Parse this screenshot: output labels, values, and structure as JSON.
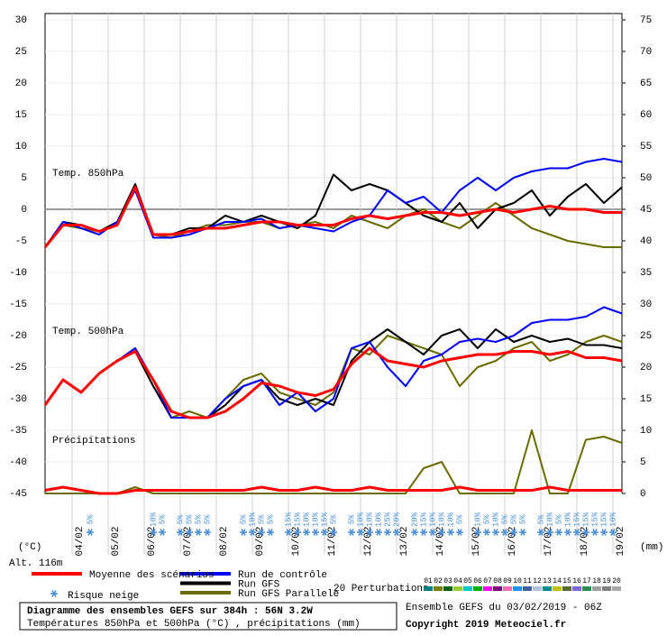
{
  "chart_data": {
    "type": "line",
    "title": "Diagramme des ensembles GEFS sur 384h : 56N 3.2W",
    "subtitle": "Températures 850hPa et 500hPa (°C) , précipitations (mm)",
    "run_info": "Ensemble GEFS du 03/02/2019 - 06Z",
    "copyright": "Copyright 2019 Meteociel.fr",
    "y_unit": "(°C)",
    "y2_unit": "(mm)",
    "altitude": "Alt. 116m",
    "annotations": [
      "Temp. 850hPa",
      "Temp. 500hPa",
      "Précipitations"
    ],
    "xlim": [
      0,
      16
    ],
    "xticks": [
      {
        "value": 0.75,
        "label": "04/02"
      },
      {
        "value": 1.75,
        "label": "05/02"
      },
      {
        "value": 2.75,
        "label": "06/02"
      },
      {
        "value": 3.75,
        "label": "07/02"
      },
      {
        "value": 4.75,
        "label": "08/02"
      },
      {
        "value": 5.75,
        "label": "09/02"
      },
      {
        "value": 6.75,
        "label": "10/02"
      },
      {
        "value": 7.75,
        "label": "11/02"
      },
      {
        "value": 8.75,
        "label": "12/02"
      },
      {
        "value": 9.75,
        "label": "13/02"
      },
      {
        "value": 10.75,
        "label": "14/02"
      },
      {
        "value": 11.75,
        "label": "15/02"
      },
      {
        "value": 12.75,
        "label": "16/02"
      },
      {
        "value": 13.75,
        "label": "17/02"
      },
      {
        "value": 14.75,
        "label": "18/02"
      },
      {
        "value": 15.75,
        "label": "19/02"
      }
    ],
    "ylim": [
      -45,
      30
    ],
    "yticks": [
      -45,
      -40,
      -35,
      -30,
      -25,
      -20,
      -15,
      -10,
      -5,
      0,
      5,
      10,
      15,
      20,
      25,
      30
    ],
    "y2lim": [
      0,
      75
    ],
    "y2ticks": [
      0,
      5,
      10,
      15,
      20,
      25,
      30,
      35,
      40,
      45,
      50,
      55,
      60,
      65,
      70,
      75
    ],
    "grid": true,
    "x": [
      0,
      0.5,
      1,
      1.5,
      2,
      2.5,
      3,
      3.5,
      4,
      4.5,
      5,
      5.5,
      6,
      6.5,
      7,
      7.5,
      8,
      8.5,
      9,
      9.5,
      10,
      10.5,
      11,
      11.5,
      12,
      12.5,
      13,
      13.5,
      14,
      14.5,
      15,
      15.5,
      16
    ],
    "series": [
      {
        "name": "Run GFS Parallele",
        "color": "#6b6b00",
        "values": [
          -6,
          -2.5,
          -3,
          -3.5,
          -2.5,
          3.5,
          -4,
          -4.5,
          -3.5,
          -2.5,
          -2.5,
          -2,
          -2,
          -3,
          -2.5,
          -2,
          -3,
          -1,
          -2,
          -3,
          -1,
          0,
          -2,
          -3,
          -1,
          1,
          -1,
          -3,
          -4,
          -5,
          -5.5,
          -6,
          -6
        ]
      },
      {
        "name": "Run GFS",
        "color": "#000000",
        "values": [
          -6,
          -2,
          -2.5,
          -3.5,
          -2,
          4,
          -4,
          -4,
          -3,
          -3,
          -1,
          -2,
          -1,
          -2,
          -3,
          -1,
          5.5,
          3,
          4,
          3,
          1,
          -1,
          -2,
          1,
          -3,
          0,
          1,
          3,
          -1,
          2,
          4,
          1,
          3.5
        ]
      },
      {
        "name": "Run de contrôle",
        "color": "#0000ff",
        "values": [
          -6,
          -2,
          -3,
          -4,
          -2,
          3,
          -4.5,
          -4.5,
          -4,
          -3,
          -2,
          -2,
          -1.5,
          -3,
          -2.5,
          -3,
          -3.5,
          -2,
          -1,
          3,
          1,
          2,
          -0.5,
          3,
          5,
          3,
          5,
          6,
          6.5,
          6.5,
          7.5,
          8,
          7.5
        ]
      },
      {
        "name": "Moyenne des scénarios",
        "color": "#ff0000",
        "values": [
          -6,
          -2.5,
          -2.5,
          -3.5,
          -2.5,
          3.5,
          -4,
          -4,
          -3.5,
          -3,
          -3,
          -2.5,
          -2,
          -2,
          -2.5,
          -2.5,
          -2.5,
          -1.5,
          -1,
          -1.5,
          -1,
          -0.5,
          -0.5,
          -1,
          -0.5,
          0,
          -0.5,
          0,
          0.5,
          0,
          0,
          -0.5,
          -0.5
        ]
      },
      {
        "color": "#6b6b00",
        "values": [
          -31,
          -27,
          -29,
          -26,
          -24,
          -22.5,
          -27,
          -33,
          -32,
          -33,
          -30,
          -27,
          -26,
          -29,
          -30,
          -31,
          -29,
          -22,
          -23,
          -20,
          -21,
          -22,
          -23,
          -28,
          -25,
          -24,
          -22,
          -21,
          -24,
          -23,
          -21,
          -20,
          -21
        ]
      },
      {
        "color": "#000000",
        "values": [
          -31,
          -27,
          -29,
          -26,
          -24,
          -22.5,
          -28,
          -33,
          -33,
          -33,
          -31,
          -28,
          -27,
          -30,
          -31,
          -30,
          -31,
          -24,
          -21,
          -19,
          -21,
          -23,
          -20,
          -19,
          -22,
          -19,
          -21,
          -20,
          -21,
          -20.5,
          -21.5,
          -21.5,
          -22
        ]
      },
      {
        "color": "#0000ff",
        "values": [
          -31,
          -27,
          -29,
          -26,
          -24,
          -22,
          -27,
          -33,
          -33,
          -33,
          -30,
          -28,
          -27,
          -31,
          -29,
          -32,
          -30,
          -22,
          -21,
          -25,
          -28,
          -24,
          -23,
          -21,
          -20.5,
          -21,
          -20,
          -18,
          -17.5,
          -17.5,
          -17,
          -15.5,
          -16.5
        ]
      },
      {
        "color": "#ff0000",
        "values": [
          -31,
          -27,
          -29,
          -26,
          -24,
          -22.5,
          -27,
          -32,
          -33,
          -33,
          -32,
          -30,
          -27.5,
          -28,
          -29,
          -29.5,
          -28.5,
          -24.5,
          -22,
          -24,
          -24.5,
          -25,
          -24,
          -23.5,
          -23,
          -23,
          -22.5,
          -22.5,
          -23,
          -22.5,
          -23.5,
          -23.5,
          -24
        ]
      },
      {
        "color": "#6b6b00",
        "axis": "y2",
        "values": [
          0,
          0,
          0,
          0,
          0,
          1,
          0,
          0,
          0,
          0,
          0,
          0,
          0,
          0,
          0,
          0,
          0,
          0,
          0,
          0,
          0,
          4,
          5,
          0,
          0,
          0,
          0,
          10,
          0,
          0,
          8.5,
          9,
          8
        ]
      },
      {
        "color": "#ff0000",
        "axis": "y2",
        "values": [
          0.5,
          1,
          0.5,
          0,
          0,
          0.5,
          0.5,
          0.5,
          0.5,
          0.5,
          0.5,
          0.5,
          1,
          0.5,
          0.5,
          1,
          0.5,
          0.5,
          1,
          0.5,
          0.5,
          0.5,
          0.5,
          1,
          0.5,
          0.5,
          0.5,
          0.5,
          1,
          0.5,
          0.5,
          0.5,
          0.5
        ]
      }
    ],
    "snow_risk": {
      "name": "Risque neige",
      "color": "#4a90d9",
      "x": [
        1.25,
        3,
        3.25,
        3.75,
        4,
        4.25,
        4.5,
        5.5,
        5.75,
        6,
        6.25,
        6.75,
        7,
        7.25,
        7.5,
        7.75,
        8,
        8.5,
        8.75,
        9,
        9.25,
        9.5,
        9.75,
        10.25,
        10.5,
        10.75,
        11,
        11.25,
        11.5,
        12,
        12.25,
        12.5,
        12.75,
        13,
        13.25,
        13.75,
        14,
        14.25,
        14.5,
        14.75,
        15,
        15.25,
        15.5,
        15.75
      ],
      "values": [
        5,
        10,
        5,
        5,
        5,
        5,
        5,
        5,
        10,
        5,
        5,
        15,
        15,
        10,
        10,
        15,
        5,
        5,
        10,
        10,
        10,
        25,
        20,
        20,
        15,
        10,
        10,
        10,
        5,
        10,
        5,
        10,
        5,
        5,
        5,
        5,
        10,
        5,
        10,
        15,
        15,
        15,
        15,
        10
      ],
      "value_labels": [
        "5%",
        "10%",
        "5%",
        "5%",
        "5%",
        "5%",
        "5%",
        "5%",
        "10%",
        "5%",
        "5%",
        "15%",
        "15%",
        "10%",
        "10%",
        "15%",
        "5%",
        "5%",
        "10%",
        "10%",
        "10%",
        "25%",
        "20%",
        "20%",
        "15%",
        "10%",
        "10%",
        "10%",
        "5%",
        "10%",
        "5%",
        "10%",
        "5%",
        "5%",
        "5%",
        "5%",
        "10%",
        "5%",
        "10%",
        "15%",
        "15%",
        "15%",
        "15%",
        "10%"
      ]
    },
    "perturbations": {
      "name": "20 Perturbations",
      "labels": [
        "01",
        "02",
        "03",
        "04",
        "05",
        "06",
        "07",
        "08",
        "09",
        "10",
        "11",
        "12",
        "13",
        "14",
        "15",
        "16",
        "17",
        "18",
        "19",
        "20"
      ],
      "colors": [
        "#008080",
        "#808000",
        "#006400",
        "#9acd32",
        "#00c8c8",
        "#00b000",
        "#ff00ff",
        "#800080",
        "#ff69b4",
        "#1e90ff",
        "#4060a0",
        "#b0c4de",
        "#008b8b",
        "#c0c000",
        "#556b2f",
        "#7b68ee",
        "#2e8b57",
        "#a0a0a0",
        "#808080",
        "#a9a9a9"
      ]
    }
  }
}
